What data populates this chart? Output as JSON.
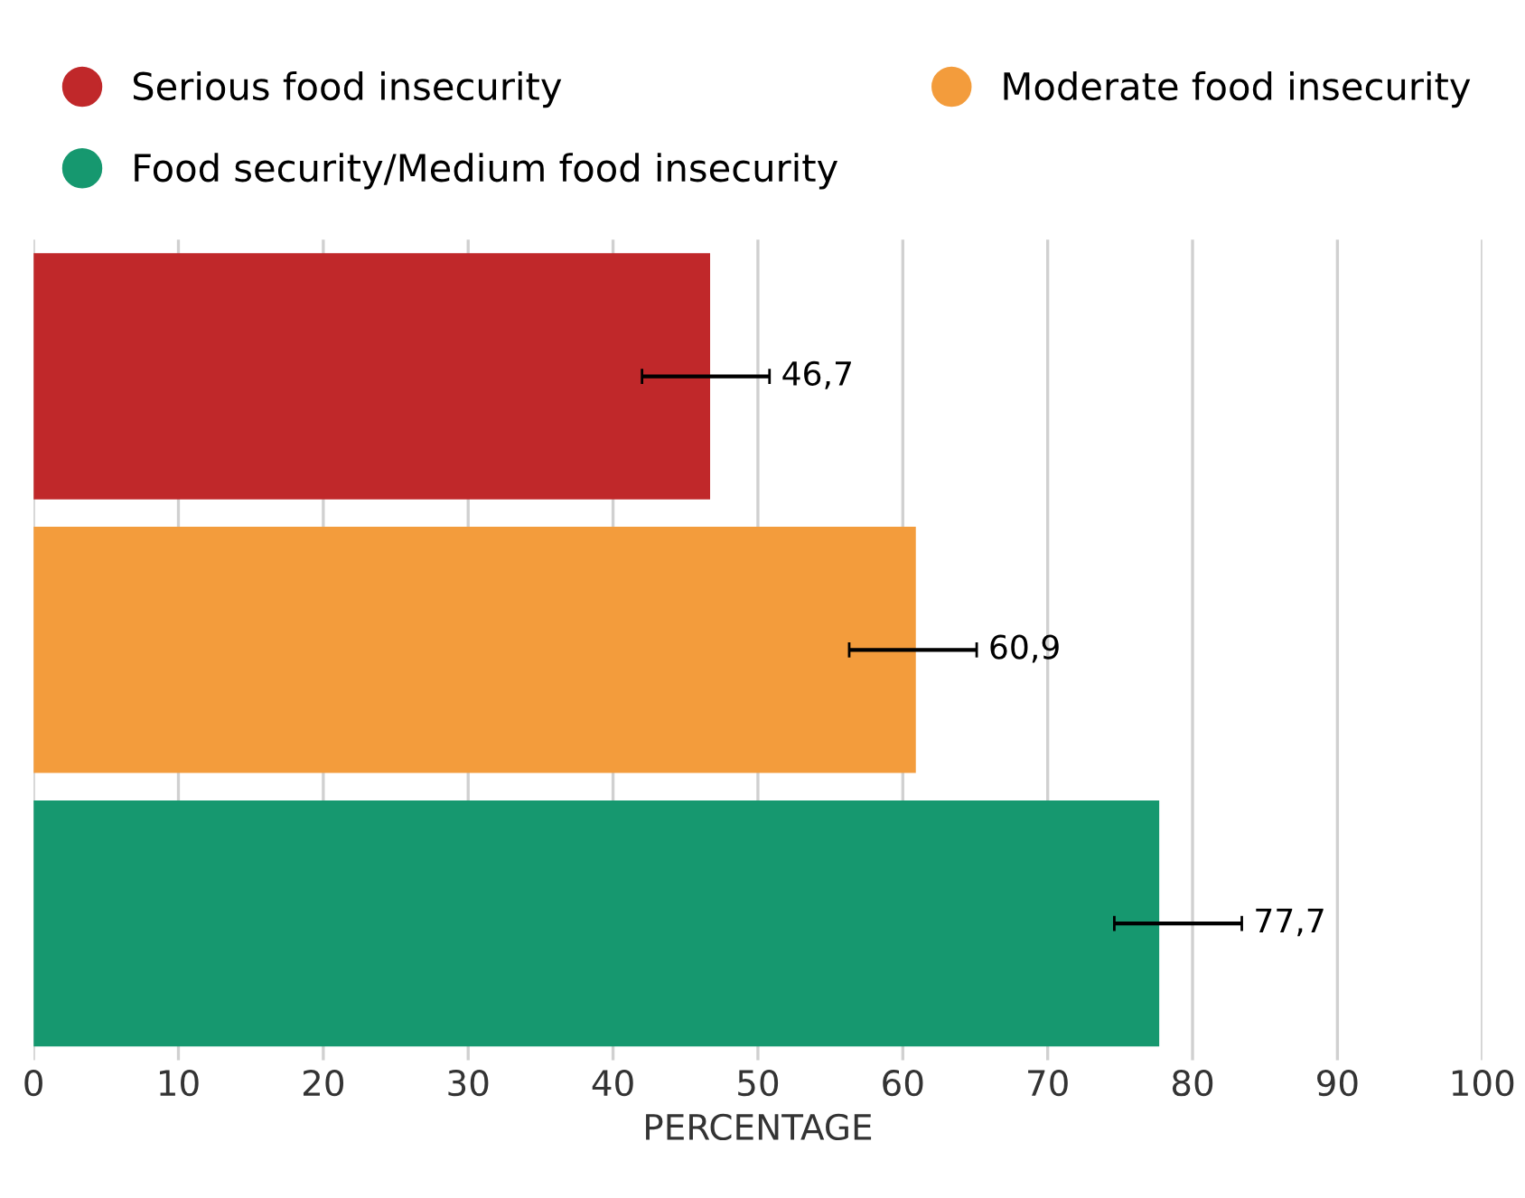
{
  "chart_data": {
    "type": "bar",
    "orientation": "horizontal",
    "categories": [
      null,
      null,
      null
    ],
    "series": [
      {
        "name": "Serious food insecurity",
        "color": "#c0282a",
        "values": [
          46.7,
          null,
          null
        ],
        "errors": [
          [
            42.0,
            50.8
          ],
          null,
          null
        ],
        "value_labels": [
          "46,7",
          null,
          null
        ]
      },
      {
        "name": "Moderate food insecurity",
        "color": "#f39c3c",
        "values": [
          null,
          60.9,
          null
        ],
        "errors": [
          null,
          [
            56.3,
            65.1
          ],
          null
        ],
        "value_labels": [
          null,
          "60,9",
          null
        ]
      },
      {
        "name": "Food security/Medium food insecurity",
        "color": "#16986f",
        "values": [
          null,
          null,
          77.7
        ],
        "errors": [
          null,
          null,
          [
            74.6,
            83.4
          ]
        ],
        "value_labels": [
          null,
          null,
          "77,7"
        ]
      }
    ],
    "xlabel": "PERCENTAGE",
    "xlim": [
      0,
      100
    ],
    "xticks": [
      0,
      10,
      20,
      30,
      40,
      50,
      60,
      70,
      80,
      90,
      100
    ],
    "grid": "x",
    "legend": "top"
  }
}
